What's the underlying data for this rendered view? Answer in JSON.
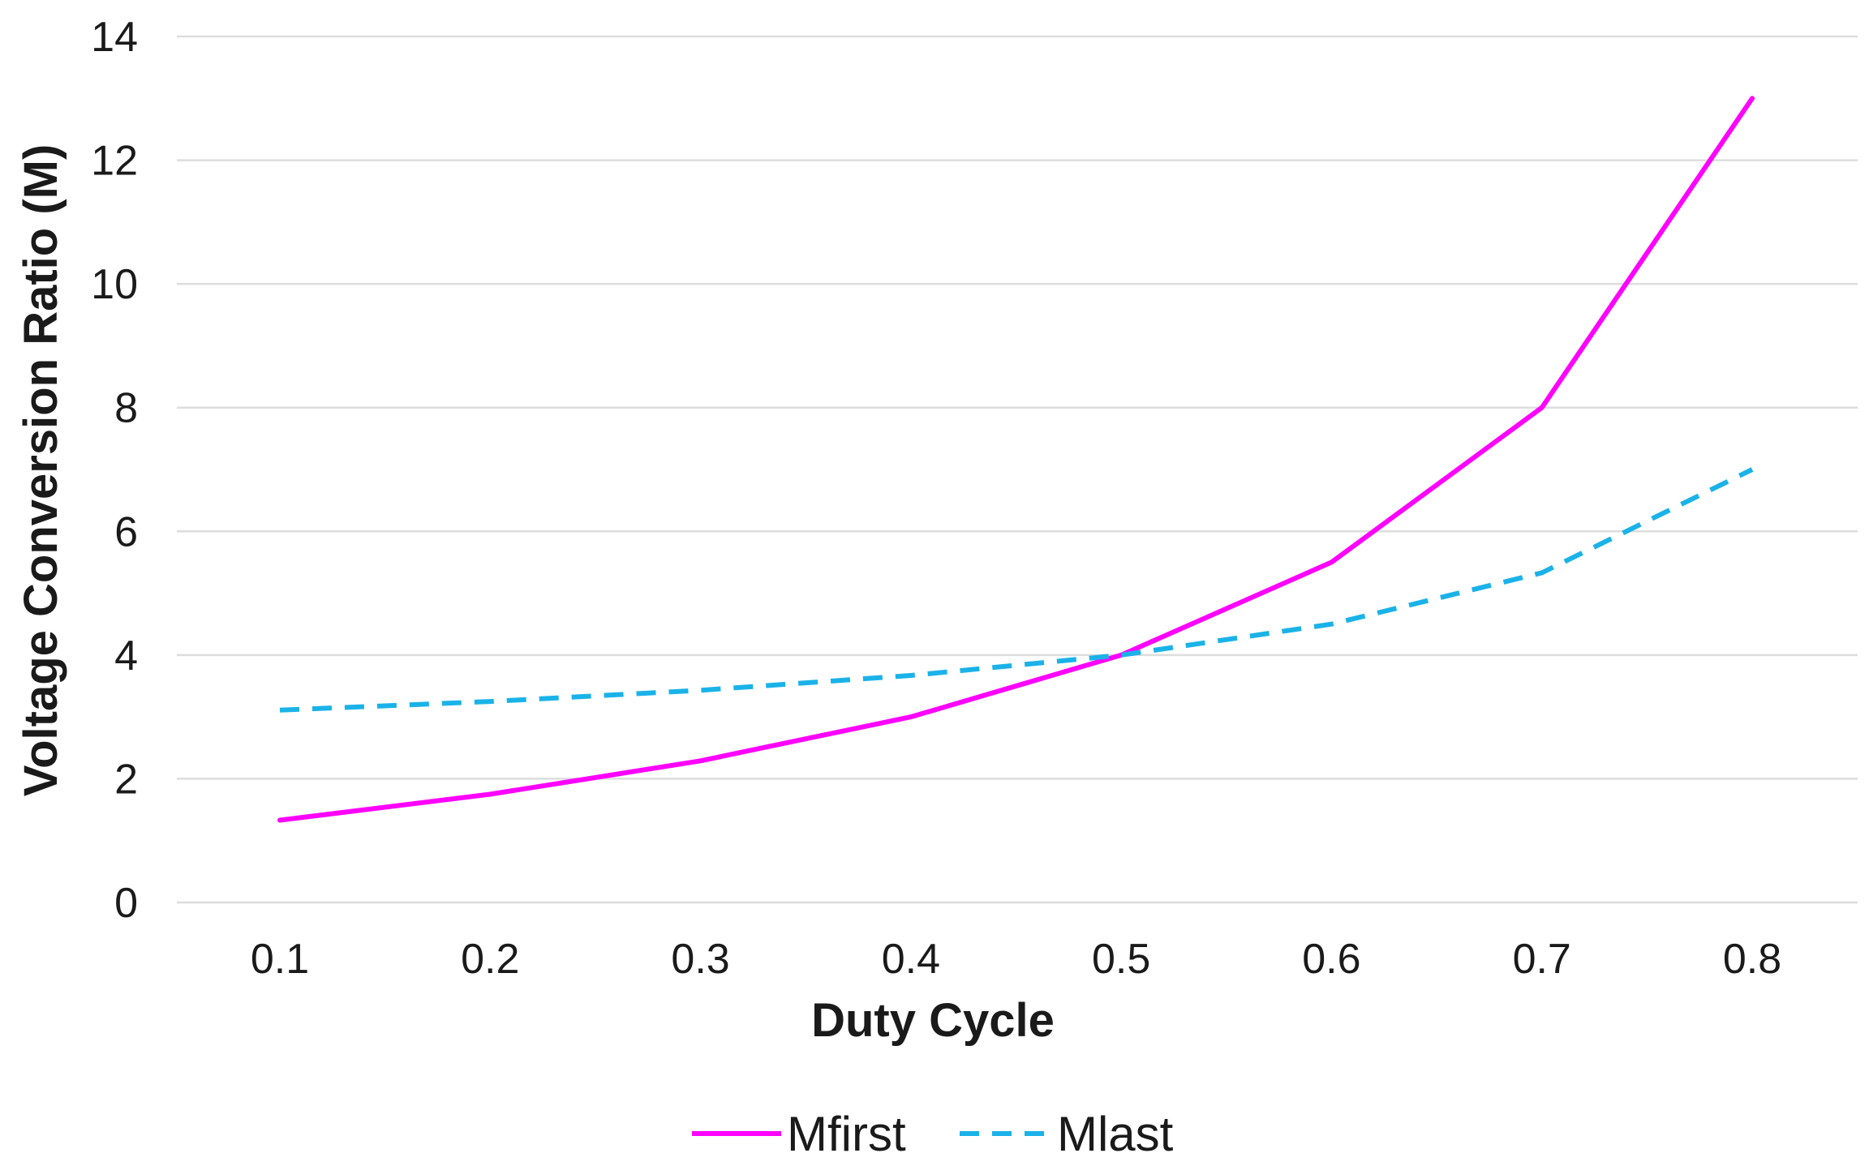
{
  "chart_data": {
    "type": "line",
    "title": "",
    "xlabel": "Duty Cycle",
    "ylabel": "Voltage Conversion Ratio (M)",
    "categories": [
      "0.1",
      "0.2",
      "0.3",
      "0.4",
      "0.5",
      "0.6",
      "0.7",
      "0.8"
    ],
    "ylim": [
      0,
      14
    ],
    "yticks": [
      0,
      2,
      4,
      6,
      8,
      10,
      12,
      14
    ],
    "grid": true,
    "legend_position": "bottom",
    "series": [
      {
        "name": "Mfirst",
        "values": [
          1.33,
          1.75,
          2.29,
          3.0,
          4.0,
          5.5,
          8.0,
          13.0
        ],
        "color": "#ff00ff",
        "style": "solid"
      },
      {
        "name": "Mlast",
        "values": [
          3.11,
          3.25,
          3.43,
          3.67,
          4.0,
          4.5,
          5.33,
          7.0
        ],
        "color": "#1ab2e8",
        "style": "dashed"
      }
    ]
  }
}
